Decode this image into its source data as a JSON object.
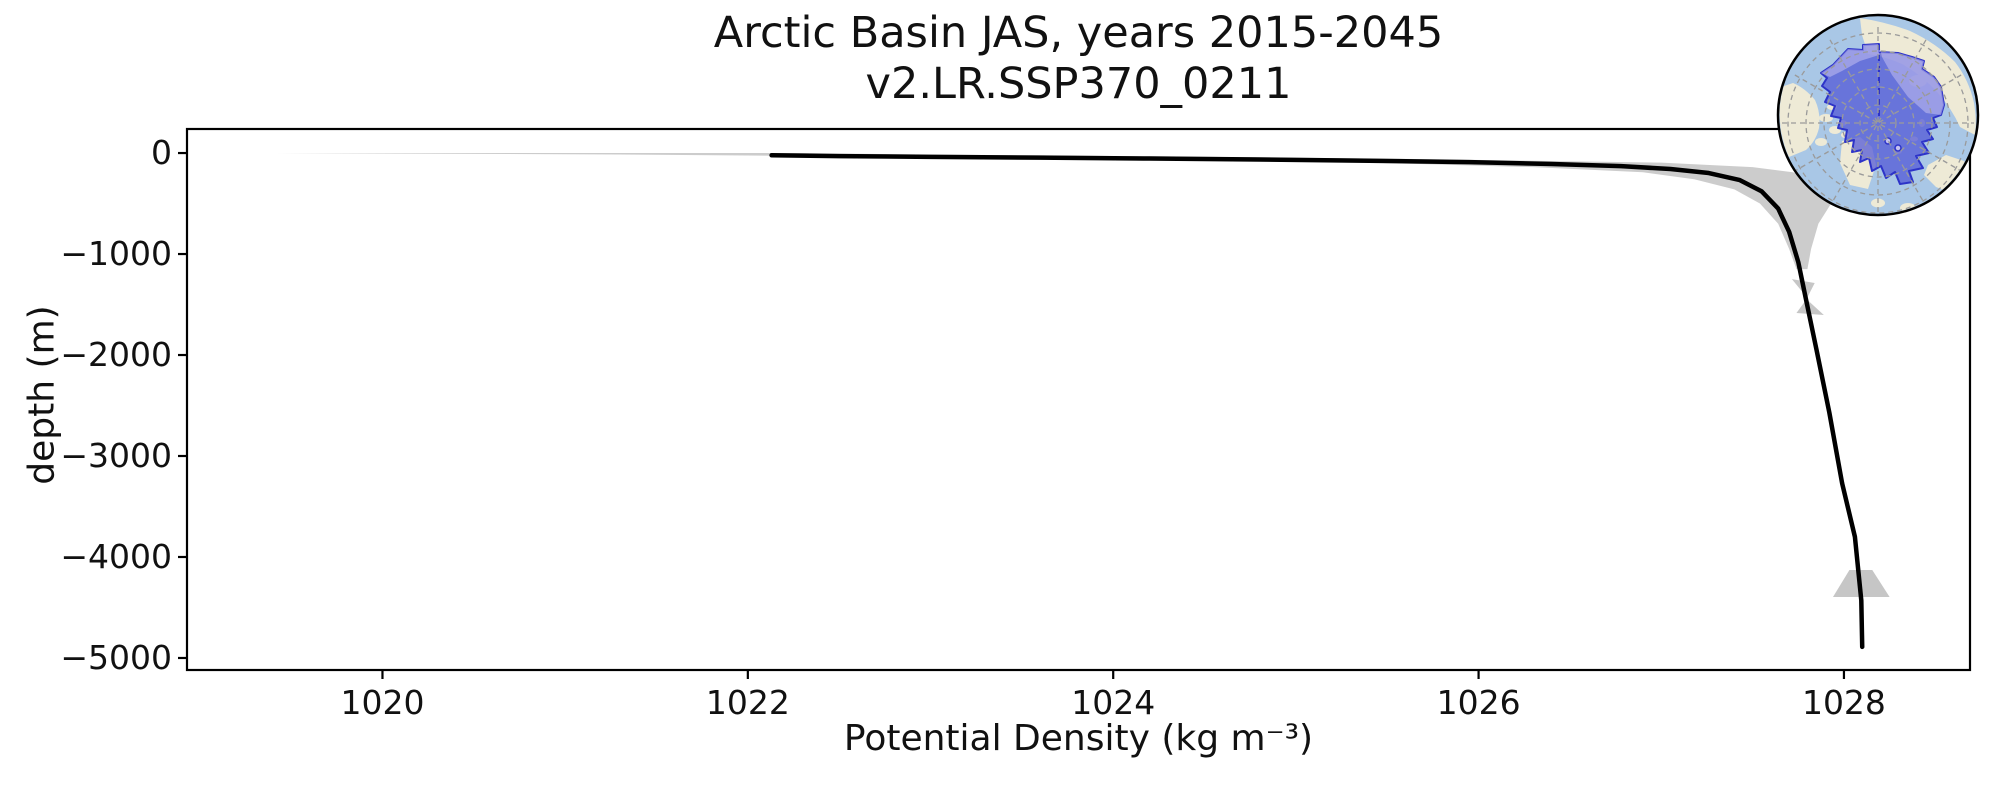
{
  "chart_data": {
    "type": "line",
    "title_line1": "Arctic Basin JAS, years 2015-2045",
    "title_line2": "v2.LR.SSP370_0211",
    "xlabel": "Potential Density (kg m⁻³)",
    "ylabel": "depth (m)",
    "xlim": [
      1018.93,
      1028.69
    ],
    "ylim": [
      -5119,
      238
    ],
    "grid": false,
    "legend": null,
    "x_axis": {
      "ticks": [
        1020,
        1022,
        1024,
        1026,
        1028
      ],
      "tick_labels": [
        "1020",
        "1022",
        "1024",
        "1026",
        "1028"
      ]
    },
    "y_axis": {
      "ticks": [
        0,
        -1000,
        -2000,
        -3000,
        -4000,
        -5000
      ],
      "tick_labels": [
        "0",
        "−1000",
        "−2000",
        "−3000",
        "−4000",
        "−5000"
      ]
    },
    "series": [
      {
        "name": "median potential density profile",
        "color": "#000000",
        "width": 4.5,
        "points": [
          [
            1022.13,
            -22
          ],
          [
            1022.5,
            -30
          ],
          [
            1023.0,
            -38
          ],
          [
            1023.6,
            -46
          ],
          [
            1024.2,
            -54
          ],
          [
            1024.8,
            -64
          ],
          [
            1025.4,
            -76
          ],
          [
            1025.95,
            -90
          ],
          [
            1026.4,
            -108
          ],
          [
            1026.78,
            -130
          ],
          [
            1027.05,
            -158
          ],
          [
            1027.26,
            -198
          ],
          [
            1027.43,
            -268
          ],
          [
            1027.55,
            -380
          ],
          [
            1027.64,
            -550
          ],
          [
            1027.7,
            -780
          ],
          [
            1027.75,
            -1080
          ],
          [
            1027.79,
            -1430
          ],
          [
            1027.85,
            -1950
          ],
          [
            1027.92,
            -2570
          ],
          [
            1027.99,
            -3270
          ],
          [
            1028.06,
            -3800
          ],
          [
            1028.095,
            -4430
          ],
          [
            1028.1,
            -4890
          ]
        ]
      }
    ],
    "envelope": {
      "name": "min-max range shading",
      "color": "#c6c6c6",
      "rows_depth_min_max": [
        [
          0,
          1019.42,
          1022.28
        ],
        [
          -15,
          1021.3,
          1023.0
        ],
        [
          -35,
          1022.8,
          1024.4
        ],
        [
          -60,
          1024.2,
          1025.7
        ],
        [
          -95,
          1025.4,
          1027.0
        ],
        [
          -140,
          1026.3,
          1027.5
        ],
        [
          -190,
          1026.9,
          1027.72
        ],
        [
          -260,
          1027.18,
          1027.85
        ],
        [
          -360,
          1027.4,
          1027.92
        ],
        [
          -500,
          1027.54,
          1027.93
        ],
        [
          -700,
          1027.64,
          1027.86
        ],
        [
          -950,
          1027.7,
          1027.82
        ],
        [
          -1150,
          1027.74,
          1027.8
        ]
      ]
    },
    "markers": [
      {
        "name": "range-glyph-mid-depth",
        "color": "#c6c6c6",
        "points": [
          [
            1027.715,
            -1248
          ],
          [
            1027.84,
            -1287
          ],
          [
            1027.795,
            -1446
          ],
          [
            1027.89,
            -1604
          ],
          [
            1027.74,
            -1584
          ],
          [
            1027.8,
            -1436
          ]
        ]
      },
      {
        "name": "range-glyph-deep",
        "color": "#c6c6c6",
        "points": [
          [
            1028.03,
            -4129
          ],
          [
            1028.155,
            -4129
          ],
          [
            1028.25,
            -4396
          ],
          [
            1027.94,
            -4396
          ]
        ]
      }
    ],
    "inset": {
      "name": "arctic-basin-region-map",
      "description": "polar globe inset with Arctic Basin region highlighted",
      "colors": {
        "ocean": "#a9c7e6",
        "land": "#eeead6",
        "mask": "#4f55d5",
        "mask_light": "#c3c0f0",
        "mask_outline": "#2d33c8",
        "graticule": "#9a9a9a"
      }
    },
    "axis_color": "#000000",
    "background": "#ffffff"
  }
}
